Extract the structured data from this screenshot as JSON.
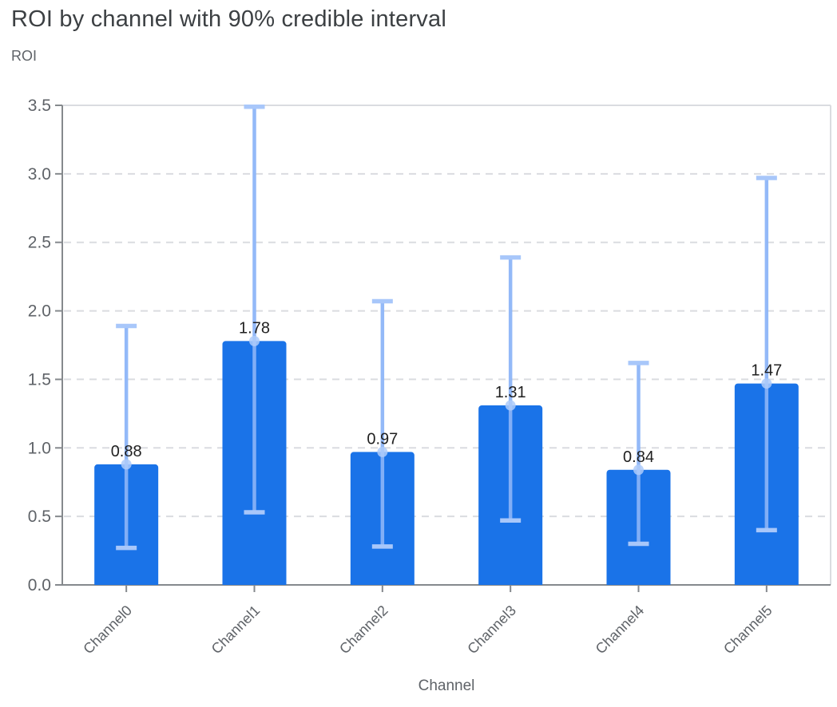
{
  "chart_data": {
    "type": "bar",
    "title": "ROI by channel with 90% credible interval",
    "ylabel": "ROI",
    "xlabel": "Channel",
    "legend": "none",
    "grid": "horizontal-dashed",
    "categories": [
      "Channel0",
      "Channel1",
      "Channel2",
      "Channel3",
      "Channel4",
      "Channel5"
    ],
    "series": [
      {
        "name": "ROI",
        "values": [
          0.88,
          1.78,
          0.97,
          1.31,
          0.84,
          1.47
        ],
        "ci_low": [
          0.27,
          0.53,
          0.28,
          0.47,
          0.3,
          0.4
        ],
        "ci_high": [
          1.89,
          3.49,
          2.07,
          2.39,
          1.62,
          2.97
        ]
      }
    ],
    "bar_value_labels": [
      "0.88",
      "1.78",
      "0.97",
      "1.31",
      "0.84",
      "1.47"
    ],
    "ylim": [
      0,
      3.5
    ],
    "yticks": [
      0,
      0.5,
      1,
      1.5,
      2,
      2.5,
      3,
      3.5
    ],
    "ytick_labels": [
      "0.0",
      "0.5",
      "1.0",
      "1.5",
      "2.0",
      "2.5",
      "3.0",
      "3.5"
    ],
    "colors": {
      "bar": "#1a73e8",
      "error_line": "#8ab4f8",
      "error_cap": "#a8c7fa",
      "marker": "#aecbfa",
      "grid": "#dadce0",
      "border": "#dadce0",
      "axis": "#85898d",
      "tick_label": "#5f6368",
      "value_label": "#1f1f1f",
      "title": "#3c4043"
    }
  }
}
